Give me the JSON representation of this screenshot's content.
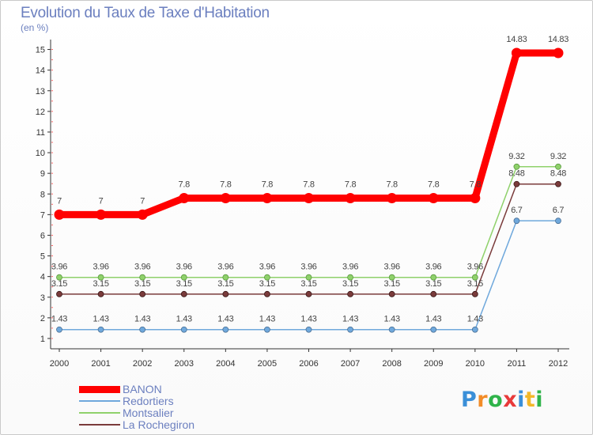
{
  "chart_data": {
    "type": "line",
    "title": "Evolution du Taux de Taxe d'Habitation",
    "subtitle": "(en %)",
    "xlabel": "",
    "ylabel": "",
    "x": [
      "2000",
      "2001",
      "2002",
      "2003",
      "2004",
      "2005",
      "2006",
      "2007",
      "2008",
      "2009",
      "2010",
      "2011",
      "2012"
    ],
    "y_ticks": [
      "1",
      "2",
      "3",
      "4",
      "5",
      "6",
      "7",
      "8",
      "9",
      "10",
      "11",
      "12",
      "13",
      "14",
      "15"
    ],
    "ylim": [
      0.5,
      15.3
    ],
    "legend_position": "bottom-left",
    "series": [
      {
        "name": "BANON",
        "color": "#ff0000",
        "values": [
          7,
          7,
          7,
          7.8,
          7.8,
          7.8,
          7.8,
          7.8,
          7.8,
          7.8,
          7.8,
          14.83,
          14.83
        ],
        "labels": [
          "7",
          "7",
          "7",
          "7.8",
          "7.8",
          "7.8",
          "7.8",
          "7.8",
          "7.8",
          "7.8",
          "7.8",
          "14.83",
          "14.83"
        ]
      },
      {
        "name": "Redortiers",
        "color": "#6fa8dc",
        "values": [
          1.43,
          1.43,
          1.43,
          1.43,
          1.43,
          1.43,
          1.43,
          1.43,
          1.43,
          1.43,
          1.43,
          6.7,
          6.7
        ],
        "labels": [
          "1.43",
          "1.43",
          "1.43",
          "1.43",
          "1.43",
          "1.43",
          "1.43",
          "1.43",
          "1.43",
          "1.43",
          "1.43",
          "6.7",
          "6.7"
        ]
      },
      {
        "name": "Montsalier",
        "color": "#8fd16b",
        "values": [
          3.96,
          3.96,
          3.96,
          3.96,
          3.96,
          3.96,
          3.96,
          3.96,
          3.96,
          3.96,
          3.96,
          9.32,
          9.32
        ],
        "labels": [
          "3.96",
          "3.96",
          "3.96",
          "3.96",
          "3.96",
          "3.96",
          "3.96",
          "3.96",
          "3.96",
          "3.96",
          "3.96",
          "9.32",
          "9.32"
        ]
      },
      {
        "name": "La Rochegiron",
        "color": "#7a3b3b",
        "values": [
          3.15,
          3.15,
          3.15,
          3.15,
          3.15,
          3.15,
          3.15,
          3.15,
          3.15,
          3.15,
          3.15,
          8.48,
          8.48
        ],
        "labels": [
          "3.15",
          "3.15",
          "3.15",
          "3.15",
          "3.15",
          "3.15",
          "3.15",
          "3.15",
          "3.15",
          "3.15",
          "3.15",
          "8.48",
          "8.48"
        ]
      }
    ]
  },
  "logo": {
    "letters": [
      "P",
      "r",
      "o",
      "x",
      "i",
      "t",
      "i"
    ],
    "colors": [
      "#3a8fd8",
      "#f28c28",
      "#2fb34a",
      "#e83a3a",
      "#3a8fd8",
      "#f2b728",
      "#2fb34a"
    ]
  }
}
